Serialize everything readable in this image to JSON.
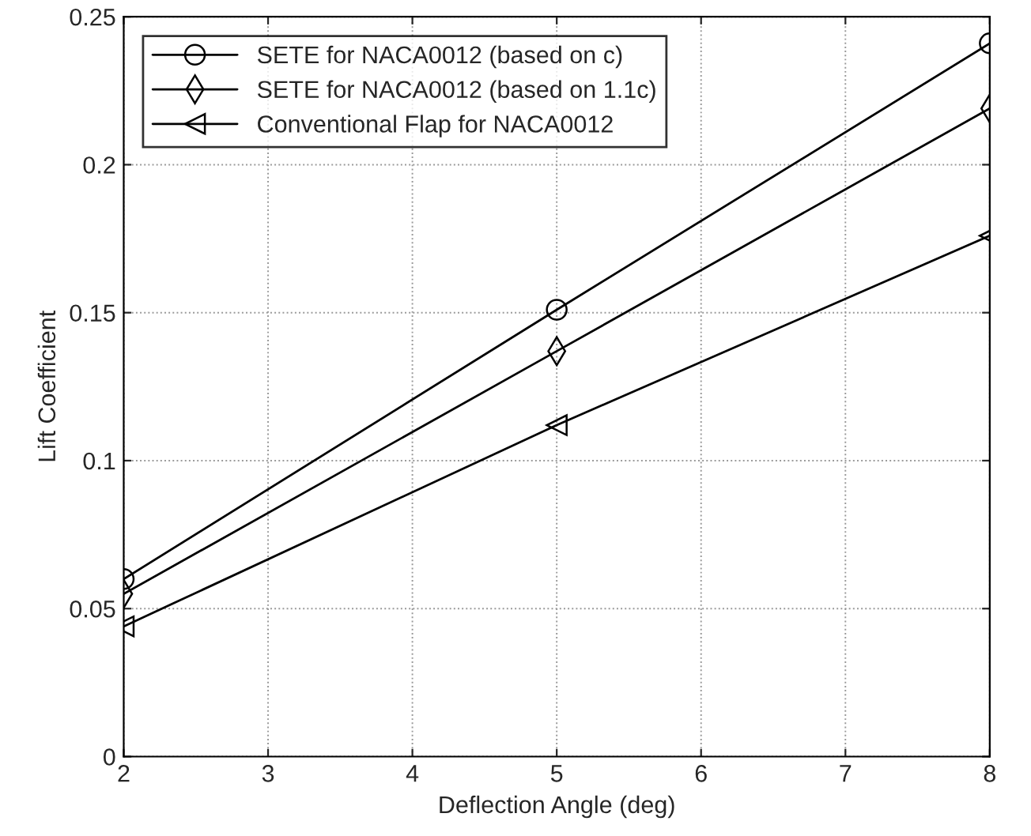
{
  "chart_data": {
    "type": "line",
    "xlabel": "Deflection Angle (deg)",
    "ylabel": "Lift Coefficient",
    "x": [
      2,
      5,
      8
    ],
    "series": [
      {
        "name": "SETE for NACA0012 (based on c)",
        "color": "#000000",
        "marker": "circle",
        "values": [
          0.06,
          0.151,
          0.241
        ]
      },
      {
        "name": "SETE for NACA0012 (based on 1.1c)",
        "color": "#000000",
        "marker": "diamond",
        "values": [
          0.055,
          0.137,
          0.219
        ]
      },
      {
        "name": "Conventional Flap for NACA0012",
        "color": "#000000",
        "marker": "triangle",
        "values": [
          0.044,
          0.112,
          0.176
        ]
      }
    ],
    "xlim": [
      2,
      8
    ],
    "xticks": [
      2,
      3,
      4,
      5,
      6,
      7,
      8
    ],
    "ylim": [
      0,
      0.25
    ],
    "yticks": [
      0,
      0.05,
      0.1,
      0.15,
      0.2,
      0.25
    ],
    "grid": true,
    "legend": "top left",
    "line_style": "solid"
  }
}
